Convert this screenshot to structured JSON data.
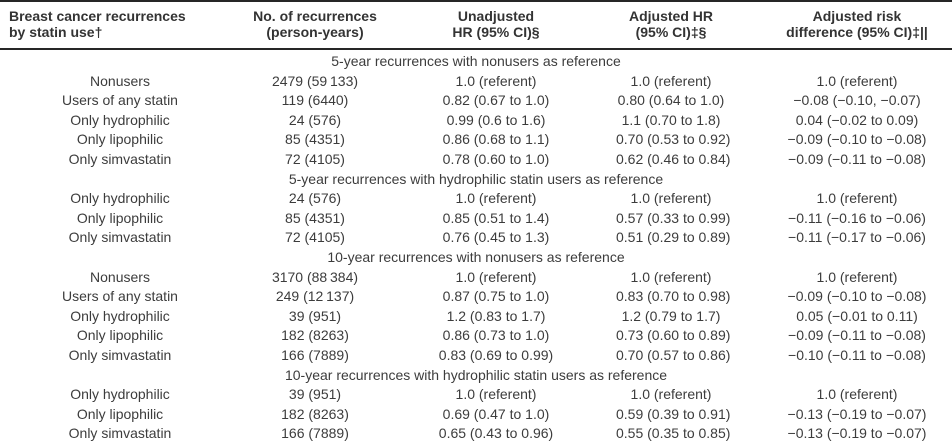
{
  "table": {
    "columns": [
      {
        "line1": "Breast cancer recurrences",
        "line2": "by statin use†"
      },
      {
        "line1": "No. of recurrences",
        "line2": "(person-years)"
      },
      {
        "line1": "Unadjusted",
        "line2": "HR (95% CI)§"
      },
      {
        "line1": "Adjusted HR",
        "line2": "(95% CI)‡§"
      },
      {
        "line1": "Adjusted risk",
        "line2": "difference (95% CI)‡||"
      }
    ],
    "sections": [
      {
        "header": "5-year recurrences with nonusers as reference",
        "rows": [
          {
            "label": "Nonusers",
            "recurrences": "2479 (59 133)",
            "unadjusted_hr": "1.0 (referent)",
            "adjusted_hr": "1.0 (referent)",
            "risk_difference": "1.0 (referent)"
          },
          {
            "label": "Users of any statin",
            "recurrences": "119 (6440)",
            "unadjusted_hr": "0.82 (0.67 to 1.0)",
            "adjusted_hr": "0.80 (0.64 to 1.0)",
            "risk_difference": "−0.08 (−0.10, −0.07)"
          },
          {
            "label": "Only hydrophilic",
            "recurrences": "24 (576)",
            "unadjusted_hr": "0.99 (0.6 to 1.6)",
            "adjusted_hr": "1.1 (0.70 to 1.8)",
            "risk_difference": "0.04 (−0.02 to 0.09)"
          },
          {
            "label": "Only lipophilic",
            "recurrences": "85 (4351)",
            "unadjusted_hr": "0.86 (0.68 to 1.1)",
            "adjusted_hr": "0.70 (0.53 to 0.92)",
            "risk_difference": "−0.09 (−0.10 to −0.08)"
          },
          {
            "label": "Only simvastatin",
            "recurrences": "72 (4105)",
            "unadjusted_hr": "0.78 (0.60 to 1.0)",
            "adjusted_hr": "0.62 (0.46 to 0.84)",
            "risk_difference": "−0.09 (−0.11 to −0.08)"
          }
        ]
      },
      {
        "header": "5-year recurrences with hydrophilic statin users as reference",
        "rows": [
          {
            "label": "Only hydrophilic",
            "recurrences": "24 (576)",
            "unadjusted_hr": "1.0 (referent)",
            "adjusted_hr": "1.0 (referent)",
            "risk_difference": "1.0 (referent)"
          },
          {
            "label": "Only lipophilic",
            "recurrences": "85 (4351)",
            "unadjusted_hr": "0.85 (0.51 to 1.4)",
            "adjusted_hr": "0.57 (0.33 to 0.99)",
            "risk_difference": "−0.11 (−0.16 to −0.06)"
          },
          {
            "label": "Only simvastatin",
            "recurrences": "72 (4105)",
            "unadjusted_hr": "0.76 (0.45 to 1.3)",
            "adjusted_hr": "0.51 (0.29 to 0.89)",
            "risk_difference": "−0.11 (−0.17 to −0.06)"
          }
        ]
      },
      {
        "header": "10-year recurrences with nonusers as reference",
        "rows": [
          {
            "label": "Nonusers",
            "recurrences": "3170 (88 384)",
            "unadjusted_hr": "1.0 (referent)",
            "adjusted_hr": "1.0 (referent)",
            "risk_difference": "1.0 (referent)"
          },
          {
            "label": "Users of any statin",
            "recurrences": "249 (12 137)",
            "unadjusted_hr": "0.87 (0.75 to 1.0)",
            "adjusted_hr": "0.83 (0.70 to 0.98)",
            "risk_difference": "−0.09 (−0.10 to −0.08)"
          },
          {
            "label": "Only hydrophilic",
            "recurrences": "39 (951)",
            "unadjusted_hr": "1.2 (0.83 to 1.7)",
            "adjusted_hr": "1.2 (0.79 to 1.7)",
            "risk_difference": "0.05 (−0.01 to 0.11)"
          },
          {
            "label": "Only lipophilic",
            "recurrences": "182 (8263)",
            "unadjusted_hr": "0.86 (0.73 to 1.0)",
            "adjusted_hr": "0.73 (0.60 to 0.89)",
            "risk_difference": "−0.09 (−0.11 to −0.08)"
          },
          {
            "label": "Only simvastatin",
            "recurrences": "166 (7889)",
            "unadjusted_hr": "0.83 (0.69 to 0.99)",
            "adjusted_hr": "0.70 (0.57 to 0.86)",
            "risk_difference": "−0.10 (−0.11 to −0.08)"
          }
        ]
      },
      {
        "header": "10-year recurrences with hydrophilic statin users as reference",
        "rows": [
          {
            "label": "Only hydrophilic",
            "recurrences": "39 (951)",
            "unadjusted_hr": "1.0 (referent)",
            "adjusted_hr": "1.0 (referent)",
            "risk_difference": "1.0 (referent)"
          },
          {
            "label": "Only lipophilic",
            "recurrences": "182 (8263)",
            "unadjusted_hr": "0.69 (0.47 to 1.0)",
            "adjusted_hr": "0.59 (0.39 to 0.91)",
            "risk_difference": "−0.13 (−0.19 to −0.07)"
          },
          {
            "label": "Only simvastatin",
            "recurrences": "166 (7889)",
            "unadjusted_hr": "0.65 (0.43 to 0.96)",
            "adjusted_hr": "0.55 (0.35 to 0.85)",
            "risk_difference": "−0.13 (−0.19 to −0.07)"
          }
        ]
      }
    ],
    "colors": {
      "text": "#3c3c3c",
      "rule": "#262626",
      "background": "#ffffff"
    }
  }
}
